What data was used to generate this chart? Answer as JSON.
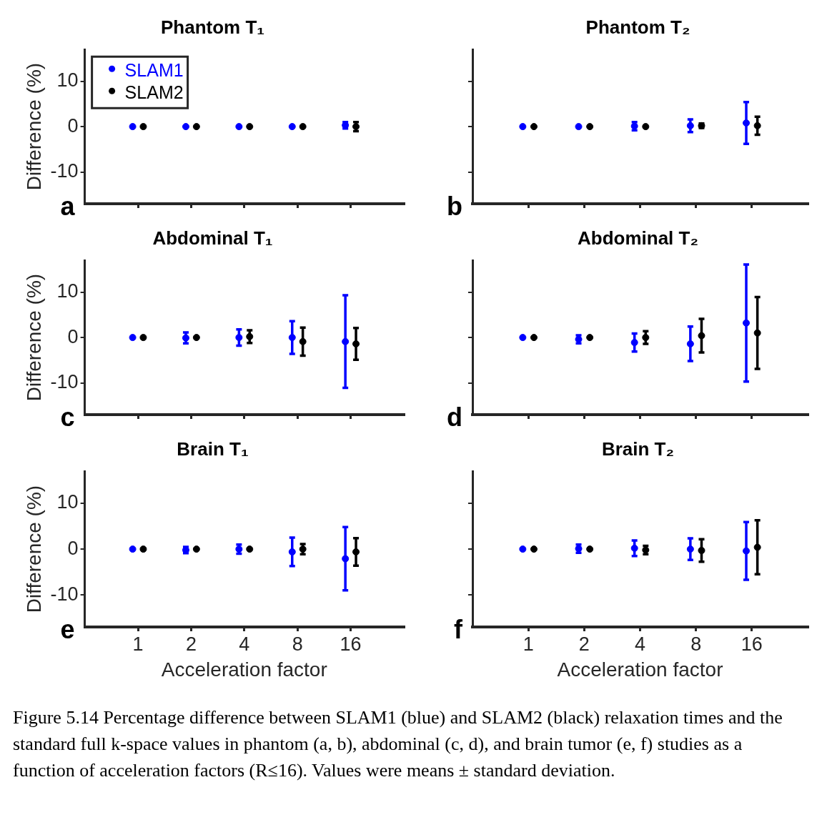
{
  "chart_data": [
    {
      "type": "scatter",
      "title": "Phantom T₁",
      "ylabel": "Difference (%)",
      "categories": [
        "1",
        "2",
        "4",
        "8",
        "16"
      ],
      "ylim": [
        -17,
        17
      ],
      "yticks": [
        -10,
        0,
        10
      ],
      "tick_labels": "y",
      "legend": "top left",
      "marker": "circle",
      "annotations": [
        "a"
      ],
      "series": [
        {
          "name": "SLAM1",
          "color": "#0000ff",
          "values": [
            0,
            0,
            0,
            0,
            0.3
          ],
          "errors": [
            null,
            null,
            null,
            null,
            0.7
          ]
        },
        {
          "name": "SLAM2",
          "color": "#000000",
          "values": [
            0,
            0,
            0,
            0,
            0
          ],
          "errors": [
            null,
            null,
            null,
            null,
            1
          ]
        }
      ]
    },
    {
      "type": "scatter",
      "title": "Phantom T₂",
      "categories": [
        "1",
        "2",
        "4",
        "8",
        "16"
      ],
      "ylim": [
        -17,
        17
      ],
      "yticks": [
        -10,
        0,
        10
      ],
      "tick_labels": false,
      "marker": "circle",
      "annotations": [
        "b"
      ],
      "series": [
        {
          "color": "#0000ff",
          "values": [
            0,
            0,
            0.1,
            0.2,
            0.8
          ],
          "errors": [
            null,
            null,
            0.9,
            1.4,
            4.6
          ]
        },
        {
          "color": "#000000",
          "values": [
            0,
            0,
            0,
            0.2,
            0.2
          ],
          "errors": [
            null,
            null,
            null,
            0.5,
            2
          ]
        }
      ]
    },
    {
      "type": "scatter",
      "title": "Abdominal T₁",
      "ylabel": "Difference (%)",
      "categories": [
        "1",
        "2",
        "4",
        "8",
        "16"
      ],
      "ylim": [
        -17,
        17
      ],
      "yticks": [
        -10,
        0,
        10
      ],
      "tick_labels": "y",
      "marker": "circle",
      "annotations": [
        "c"
      ],
      "series": [
        {
          "color": "#0000ff",
          "values": [
            0,
            -0.1,
            0,
            0,
            -0.9
          ],
          "errors": [
            null,
            1.2,
            1.8,
            3.6,
            10.2
          ]
        },
        {
          "color": "#000000",
          "values": [
            0,
            0,
            0.2,
            -0.9,
            -1.4
          ],
          "errors": [
            null,
            null,
            1.4,
            3.1,
            3.5
          ]
        }
      ]
    },
    {
      "type": "scatter",
      "title": "Abdominal T₂",
      "categories": [
        "1",
        "2",
        "4",
        "8",
        "16"
      ],
      "ylim": [
        -17,
        17
      ],
      "yticks": [
        -10,
        0,
        10
      ],
      "tick_labels": false,
      "marker": "circle",
      "annotations": [
        "d"
      ],
      "series": [
        {
          "color": "#0000ff",
          "values": [
            0,
            -0.4,
            -1.1,
            -1.4,
            3.2
          ],
          "errors": [
            null,
            0.9,
            2,
            3.8,
            12.9
          ]
        },
        {
          "color": "#000000",
          "values": [
            0,
            0,
            0,
            0.4,
            1
          ],
          "errors": [
            null,
            null,
            1.4,
            3.7,
            7.9
          ]
        }
      ]
    },
    {
      "type": "scatter",
      "title": "Brain T₁",
      "xlabel": "Acceleration factor",
      "ylabel": "Difference (%)",
      "categories": [
        "1",
        "2",
        "4",
        "8",
        "16"
      ],
      "ylim": [
        -17,
        17
      ],
      "yticks": [
        -10,
        0,
        10
      ],
      "marker": "circle",
      "annotations": [
        "e"
      ],
      "series": [
        {
          "color": "#0000ff",
          "values": [
            0,
            -0.2,
            0,
            -0.6,
            -2.1
          ],
          "errors": [
            null,
            0.7,
            1,
            3.1,
            6.9
          ]
        },
        {
          "color": "#000000",
          "values": [
            0,
            0,
            0,
            0,
            -0.6
          ],
          "errors": [
            null,
            null,
            null,
            1.1,
            3
          ]
        }
      ]
    },
    {
      "type": "scatter",
      "title": "Brain T₂",
      "xlabel": "Acceleration factor",
      "categories": [
        "1",
        "2",
        "4",
        "8",
        "16"
      ],
      "ylim": [
        -17,
        17
      ],
      "yticks": [
        -10,
        0,
        10
      ],
      "tick_labels": "x",
      "marker": "circle",
      "annotations": [
        "f",
        "Figure 5.14 Percentage difference between SLAM1 (blue) and SLAM2 (black) relaxation times and the standard full k-space values in phantom (a, b), abdominal (c, d), and brain tumor (e, f) studies as a function of acceleration factors (R≤16).  Values were means ± standard deviation."
      ],
      "series": [
        {
          "color": "#0000ff",
          "values": [
            0,
            0.1,
            0.2,
            0,
            -0.4
          ],
          "errors": [
            null,
            0.9,
            1.7,
            2.35,
            6.3
          ]
        },
        {
          "color": "#000000",
          "values": [
            0,
            0,
            -0.2,
            -0.3,
            0.4
          ],
          "errors": [
            null,
            null,
            0.9,
            2.45,
            5.9
          ]
        }
      ]
    }
  ]
}
